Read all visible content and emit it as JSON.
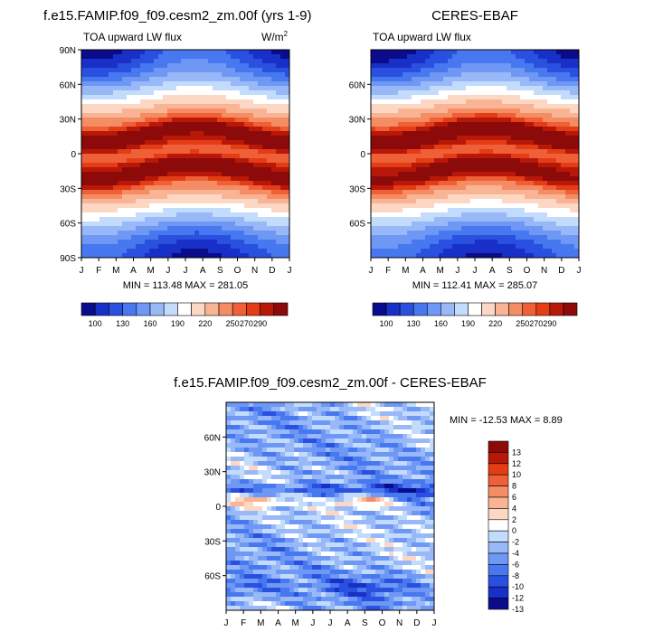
{
  "chart_data": [
    {
      "type": "heatmap",
      "title": "f.e15.FAMIP.f09_f09.cesm2_zm.00f (yrs 1-9)",
      "left_label": "TOA upward LW flux",
      "units": "W/m",
      "units_exp": "2",
      "x_ticks": [
        "J",
        "F",
        "M",
        "A",
        "M",
        "J",
        "J",
        "A",
        "S",
        "O",
        "N",
        "D",
        "J"
      ],
      "y_ticks": [
        "90N",
        "60N",
        "30N",
        "0",
        "30S",
        "60S",
        "90S"
      ],
      "ylim": [
        -90,
        90
      ],
      "stats": "MIN = 113.48 MAX = 281.05",
      "min": 113.48,
      "max": 281.05,
      "colorbar_labels": [
        "100",
        "130",
        "160",
        "190",
        "220",
        "250",
        "270",
        "290"
      ]
    },
    {
      "type": "heatmap",
      "title": "CERES-EBAF",
      "left_label": "TOA upward LW flux",
      "y_ticks": [
        "60N",
        "30N",
        "0",
        "30S",
        "60S"
      ],
      "x_ticks": [
        "J",
        "F",
        "M",
        "A",
        "M",
        "J",
        "J",
        "A",
        "S",
        "O",
        "N",
        "D",
        "J"
      ],
      "ylim": [
        -90,
        90
      ],
      "stats": "MIN = 112.41 MAX = 285.07",
      "min": 112.41,
      "max": 285.07,
      "colorbar_labels": [
        "100",
        "130",
        "160",
        "190",
        "220",
        "250",
        "270",
        "290"
      ]
    },
    {
      "type": "heatmap",
      "title": "f.e15.FAMIP.f09_f09.cesm2_zm.00f - CERES-EBAF",
      "y_ticks": [
        "60N",
        "30N",
        "0",
        "30S",
        "60S"
      ],
      "x_ticks": [
        "J",
        "F",
        "M",
        "A",
        "M",
        "J",
        "J",
        "A",
        "S",
        "O",
        "N",
        "D",
        "J"
      ],
      "ylim": [
        -90,
        90
      ],
      "stats": "MIN = -12.53 MAX =  8.89",
      "min": -12.53,
      "max": 8.89,
      "colorbar_labels": [
        "13",
        "12",
        "10",
        "8",
        "6",
        "4",
        "2",
        "0",
        "-2",
        "-4",
        "-6",
        "-8",
        "-10",
        "-12",
        "-13"
      ]
    }
  ],
  "colors": {
    "seq": [
      "#0a0c8c",
      "#1830c8",
      "#2a50e0",
      "#4878f0",
      "#6e98f4",
      "#98b8f8",
      "#c4dcfc",
      "#ffffff",
      "#fcd8c4",
      "#f8b494",
      "#f48c64",
      "#f06038",
      "#e43c14",
      "#b81808",
      "#8c0a0a"
    ],
    "diff": [
      "#8c0a0a",
      "#b81808",
      "#e43c14",
      "#f06038",
      "#f48c64",
      "#f8b494",
      "#fcd8c4",
      "#ffffff",
      "#c4dcfc",
      "#98b8f8",
      "#6e98f4",
      "#4878f0",
      "#2a50e0",
      "#1830c8",
      "#0a0c8c"
    ]
  }
}
